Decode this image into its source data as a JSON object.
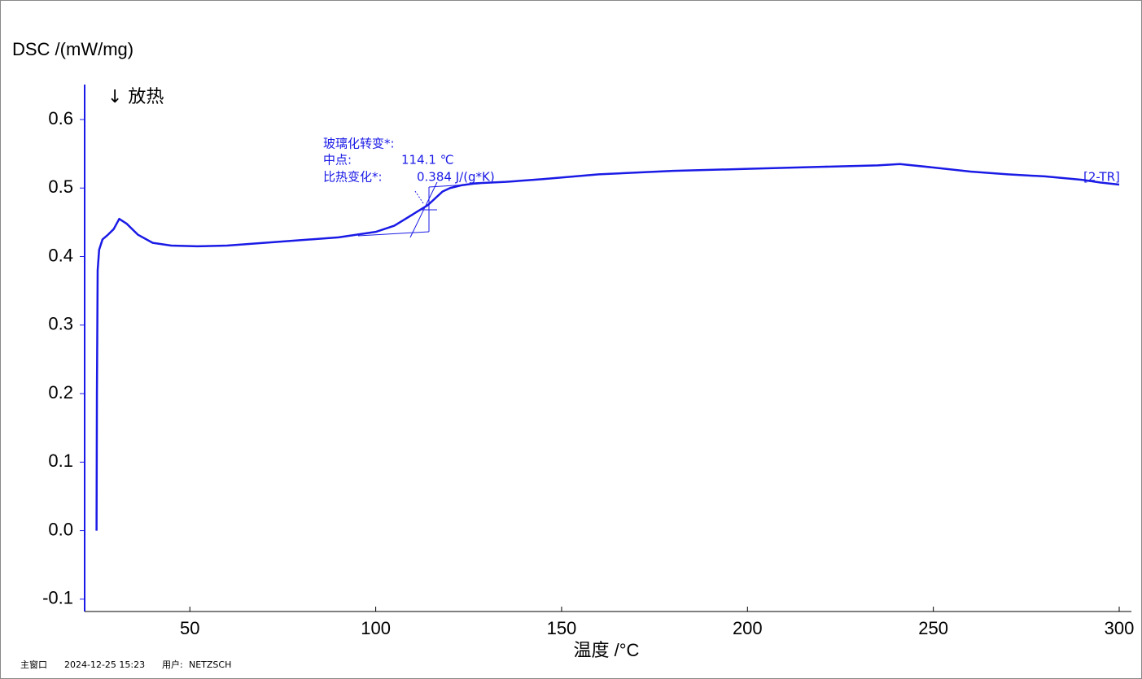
{
  "chart_data": {
    "type": "line",
    "ylabel": "DSC /(mW/mg)",
    "xlabel": "温度 /°C",
    "annotations": [
      "↓ 放热",
      "玻璃化转变*:",
      "中点:",
      "114.1 ℃",
      "比热变化*:",
      "0.384 J/(g*K)"
    ],
    "x": [
      24.9,
      25.0,
      25.2,
      25.6,
      26.5,
      28,
      29.5,
      31,
      33,
      36,
      40,
      45,
      52,
      60,
      70,
      80,
      90,
      100,
      105,
      108,
      111,
      114,
      116,
      118,
      120,
      123,
      127,
      135,
      145,
      160,
      180,
      200,
      220,
      235,
      241,
      250,
      260,
      270,
      280,
      290,
      295,
      300
    ],
    "series": [
      {
        "name": "[2-TR]",
        "color": "#1a1ae6",
        "values": [
          0.0,
          0.2,
          0.38,
          0.41,
          0.425,
          0.432,
          0.44,
          0.455,
          0.448,
          0.432,
          0.42,
          0.416,
          0.415,
          0.416,
          0.42,
          0.424,
          0.428,
          0.436,
          0.445,
          0.455,
          0.465,
          0.475,
          0.485,
          0.495,
          0.5,
          0.504,
          0.507,
          0.509,
          0.513,
          0.52,
          0.525,
          0.528,
          0.531,
          0.533,
          0.535,
          0.53,
          0.524,
          0.52,
          0.517,
          0.512,
          0.508,
          0.505
        ]
      }
    ],
    "xlim": [
      21.7,
      300
    ],
    "xticks": [
      50,
      100,
      150,
      200,
      250,
      300
    ],
    "ylim": [
      -0.118,
      0.651
    ],
    "yticks": [
      -0.1,
      {
        "value": 0,
        "label": "0.0"
      },
      0.1,
      0.2,
      0.3,
      0.4,
      0.5,
      0.6
    ],
    "grid": false
  },
  "footer": [
    "主窗口",
    "2024-12-25 15:23",
    "用户:",
    "NETZSCH"
  ]
}
